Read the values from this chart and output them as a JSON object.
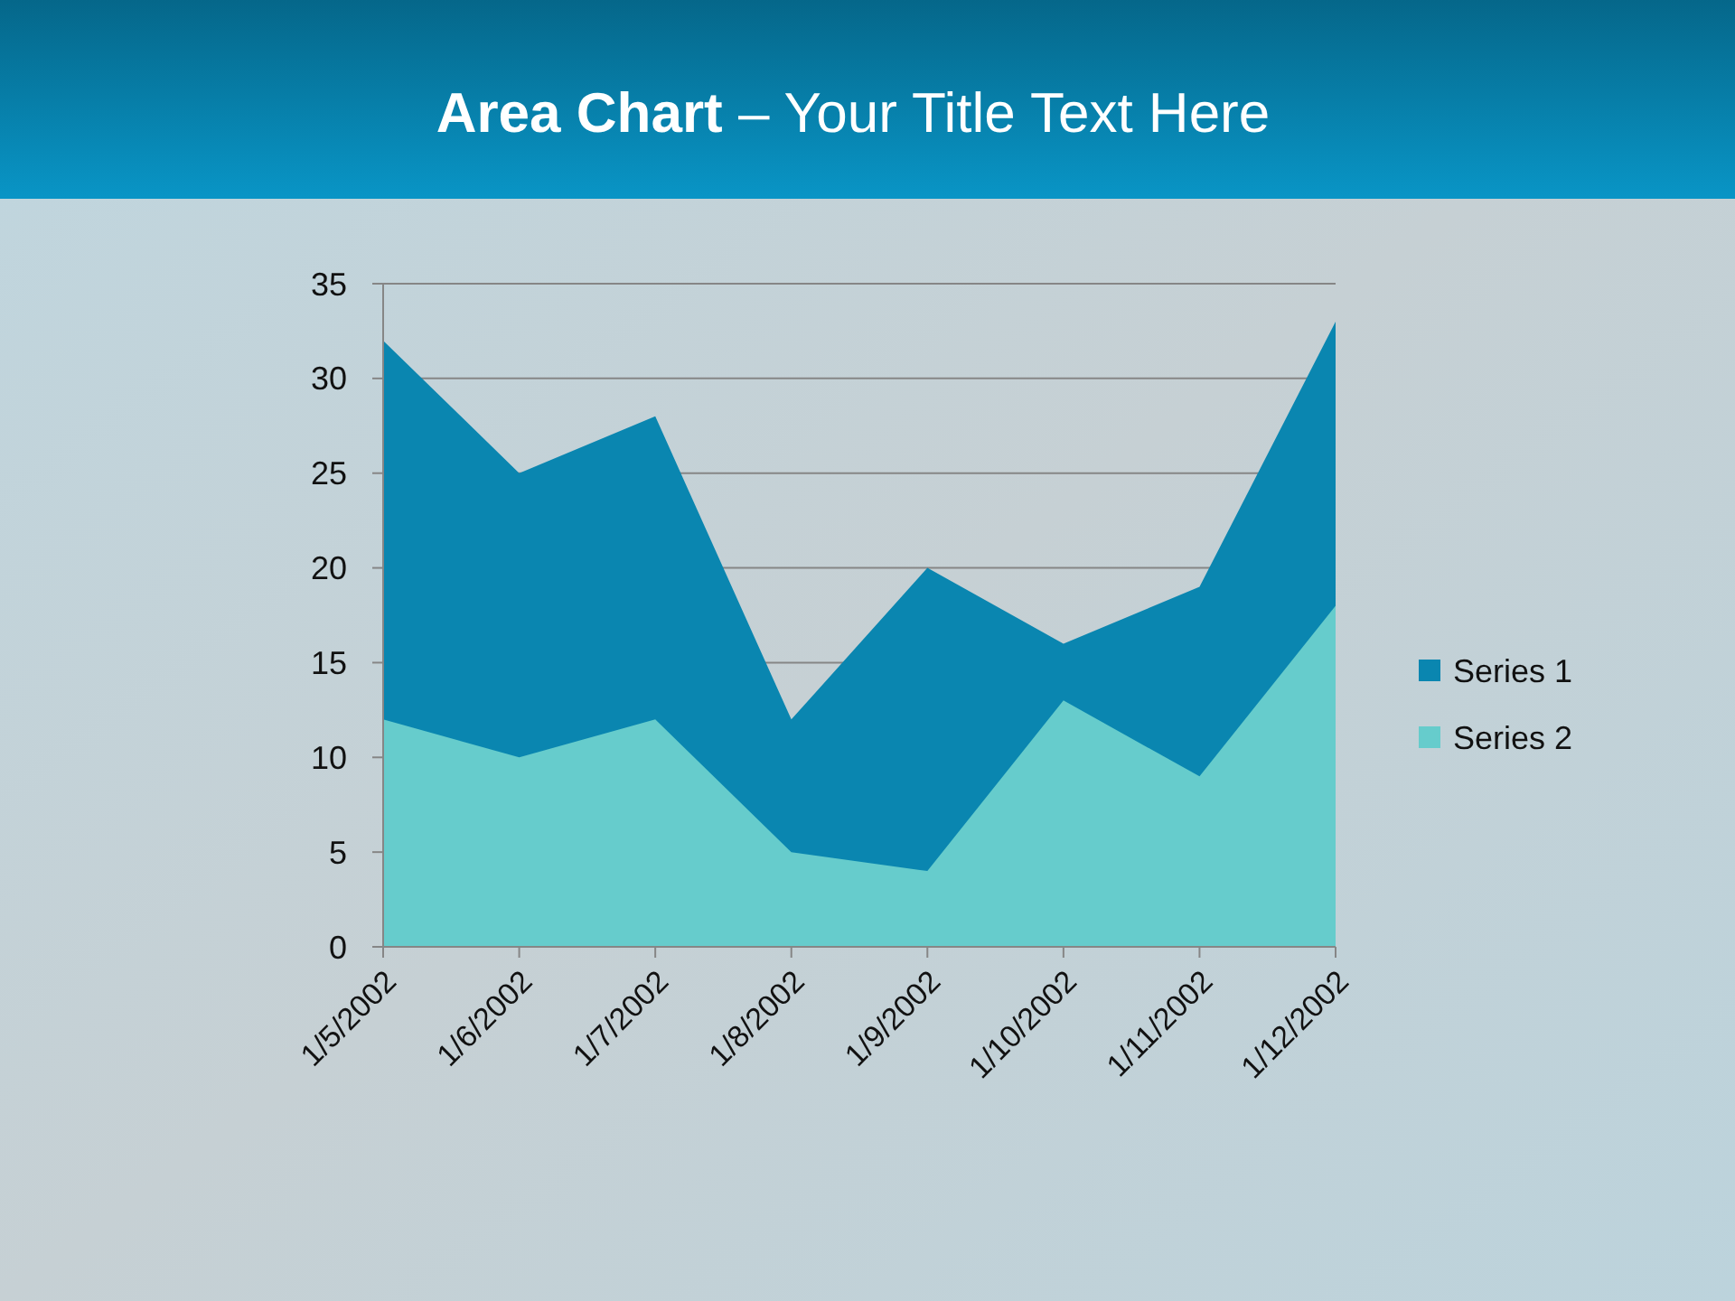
{
  "chart_data": {
    "type": "area",
    "title": "Area Chart – Your Title Text Here",
    "categories": [
      "1/5/2002",
      "1/6/2002",
      "1/7/2002",
      "1/8/2002",
      "1/9/2002",
      "1/10/2002",
      "1/11/2002",
      "1/12/2002"
    ],
    "series": [
      {
        "name": "Series 1",
        "color": "#0a86b0",
        "values": [
          32,
          25,
          28,
          12,
          20,
          16,
          19,
          33
        ]
      },
      {
        "name": "Series 2",
        "color": "#66cccc",
        "values": [
          12,
          10,
          12,
          5,
          4,
          13,
          9,
          18
        ]
      }
    ],
    "ylim": [
      0,
      35
    ],
    "yticks": [
      0,
      5,
      10,
      15,
      20,
      25,
      30,
      35
    ],
    "grid": "y",
    "legend": "right"
  }
}
